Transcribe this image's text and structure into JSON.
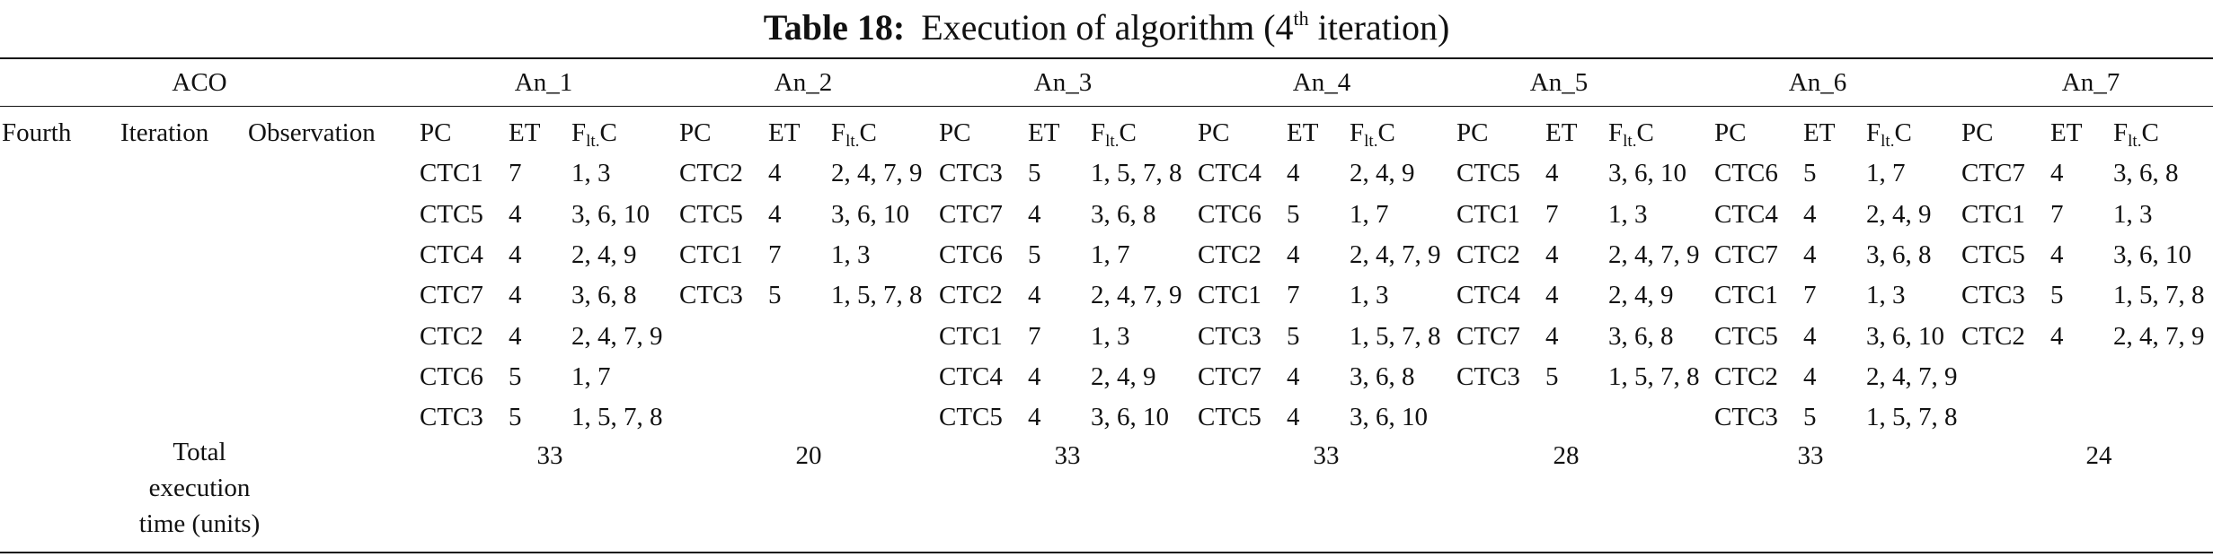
{
  "caption": {
    "label": "Table 18:",
    "text_before": "Execution of algorithm (4",
    "sup": "th",
    "text_after": " iteration)"
  },
  "header": {
    "aco": "ACO",
    "ants": [
      "An_1",
      "An_2",
      "An_3",
      "An_4",
      "An_5",
      "An_6",
      "An_7"
    ]
  },
  "row_labels": {
    "fourth": "Fourth",
    "iteration": "Iteration",
    "observation": "Observation"
  },
  "subheaders": {
    "pc": "PC",
    "et": "ET",
    "flt_main": "F",
    "flt_sub": "lt.",
    "flt_tail": "C"
  },
  "ants": [
    {
      "rows": [
        [
          "CTC1",
          "7",
          "1, 3"
        ],
        [
          "CTC5",
          "4",
          "3, 6, 10"
        ],
        [
          "CTC4",
          "4",
          "2, 4, 9"
        ],
        [
          "CTC7",
          "4",
          "3, 6, 8"
        ],
        [
          "CTC2",
          "4",
          "2, 4, 7, 9"
        ],
        [
          "CTC6",
          "5",
          "1, 7"
        ],
        [
          "CTC3",
          "5",
          "1, 5, 7, 8"
        ]
      ],
      "total": "33"
    },
    {
      "rows": [
        [
          "CTC2",
          "4",
          "2, 4, 7, 9"
        ],
        [
          "CTC5",
          "4",
          "3, 6, 10"
        ],
        [
          "CTC1",
          "7",
          "1, 3"
        ],
        [
          "CTC3",
          "5",
          "1, 5, 7, 8"
        ]
      ],
      "total": "20"
    },
    {
      "rows": [
        [
          "CTC3",
          "5",
          "1, 5, 7, 8"
        ],
        [
          "CTC7",
          "4",
          "3, 6, 8"
        ],
        [
          "CTC6",
          "5",
          "1, 7"
        ],
        [
          "CTC2",
          "4",
          "2, 4, 7, 9"
        ],
        [
          "CTC1",
          "7",
          "1, 3"
        ],
        [
          "CTC4",
          "4",
          "2, 4, 9"
        ],
        [
          "CTC5",
          "4",
          "3, 6, 10"
        ]
      ],
      "total": "33"
    },
    {
      "rows": [
        [
          "CTC4",
          "4",
          "2, 4, 9"
        ],
        [
          "CTC6",
          "5",
          "1, 7"
        ],
        [
          "CTC2",
          "4",
          "2, 4, 7, 9"
        ],
        [
          "CTC1",
          "7",
          "1, 3"
        ],
        [
          "CTC3",
          "5",
          "1, 5, 7, 8"
        ],
        [
          "CTC7",
          "4",
          "3, 6, 8"
        ],
        [
          "CTC5",
          "4",
          "3, 6, 10"
        ]
      ],
      "total": "33"
    },
    {
      "rows": [
        [
          "CTC5",
          "4",
          "3, 6, 10"
        ],
        [
          "CTC1",
          "7",
          "1, 3"
        ],
        [
          "CTC2",
          "4",
          "2, 4, 7, 9"
        ],
        [
          "CTC4",
          "4",
          "2, 4, 9"
        ],
        [
          "CTC7",
          "4",
          "3, 6, 8"
        ],
        [
          "CTC3",
          "5",
          "1, 5, 7, 8"
        ]
      ],
      "total": "28"
    },
    {
      "rows": [
        [
          "CTC6",
          "5",
          "1, 7"
        ],
        [
          "CTC4",
          "4",
          "2, 4, 9"
        ],
        [
          "CTC7",
          "4",
          "3, 6, 8"
        ],
        [
          "CTC1",
          "7",
          "1, 3"
        ],
        [
          "CTC5",
          "4",
          "3, 6, 10"
        ],
        [
          "CTC2",
          "4",
          "2, 4, 7, 9"
        ],
        [
          "CTC3",
          "5",
          "1, 5, 7, 8"
        ]
      ],
      "total": "33"
    },
    {
      "rows": [
        [
          "CTC7",
          "4",
          "3, 6, 8"
        ],
        [
          "CTC1",
          "7",
          "1, 3"
        ],
        [
          "CTC5",
          "4",
          "3, 6, 10"
        ],
        [
          "CTC3",
          "5",
          "1, 5, 7, 8"
        ],
        [
          "CTC2",
          "4",
          "2, 4, 7, 9"
        ]
      ],
      "total": "24"
    }
  ],
  "total_label": [
    "Total",
    "execution",
    "time (units)"
  ]
}
